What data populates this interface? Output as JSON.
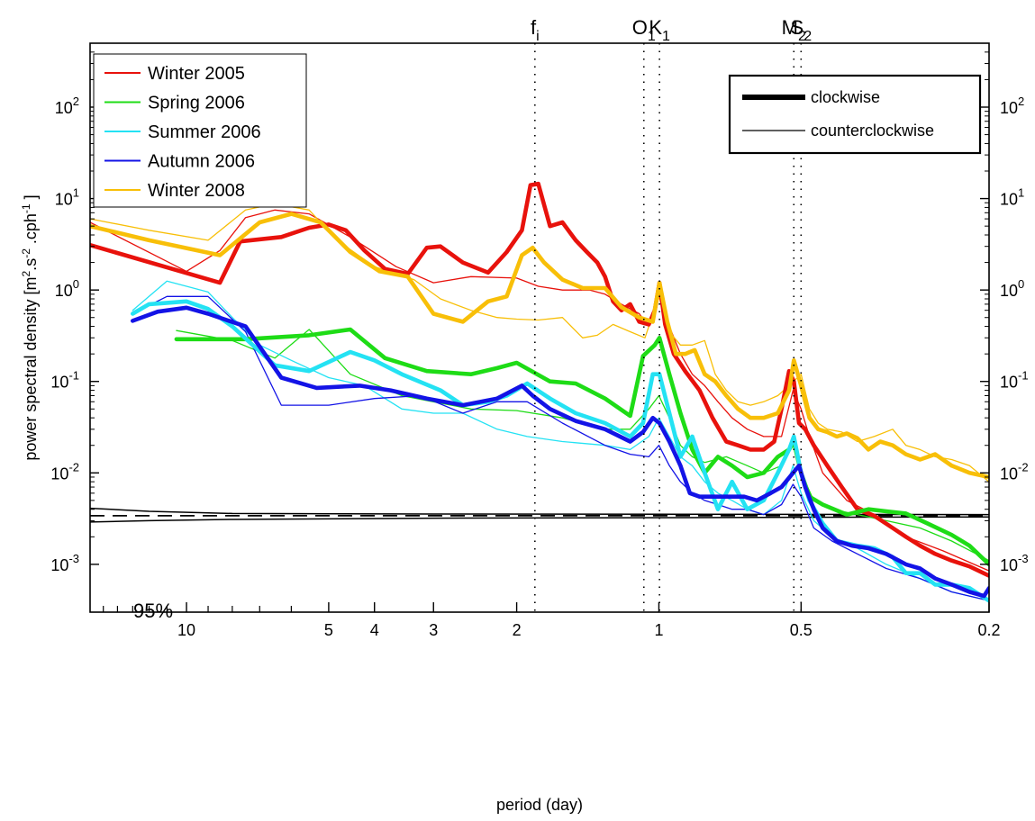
{
  "chart_data": {
    "type": "line",
    "title": "",
    "xlabel": "period (day)",
    "ylabel_parts": {
      "base": "power spectral density [m",
      "exp1": "2",
      "mid1": ".s",
      "exp2": "-2",
      "mid2": " .cph",
      "exp3": "-1",
      "end": " ]"
    },
    "x_scale": "reciprocal",
    "x_range_day": [
      16,
      0.2
    ],
    "x_ticks": [
      {
        "v": 10,
        "label": "10"
      },
      {
        "v": 5,
        "label": "5"
      },
      {
        "v": 4,
        "label": "4"
      },
      {
        "v": 3,
        "label": "3"
      },
      {
        "v": 2,
        "label": "2"
      },
      {
        "v": 1,
        "label": "1"
      },
      {
        "v": 0.5,
        "label": "0.5"
      },
      {
        "v": 0.2,
        "label": "0.2"
      }
    ],
    "x_minor_ticks": [
      15,
      14,
      13,
      12,
      11,
      9,
      8,
      7,
      6
    ],
    "y_scale": "log",
    "y_range": [
      0.0003,
      500
    ],
    "y_ticks": [
      {
        "v": 0.001,
        "base": "10",
        "exp": "-3"
      },
      {
        "v": 0.01,
        "base": "10",
        "exp": "-2"
      },
      {
        "v": 0.1,
        "base": "10",
        "exp": "-1"
      },
      {
        "v": 1,
        "base": "10",
        "exp": "0"
      },
      {
        "v": 10,
        "base": "10",
        "exp": "1"
      },
      {
        "v": 100,
        "base": "10",
        "exp": "2"
      }
    ],
    "tidal_lines": [
      {
        "name": "fi",
        "main": "f",
        "sub": "i",
        "period": 1.83
      },
      {
        "name": "O1",
        "main": "O",
        "sub": "1",
        "period": 1.076
      },
      {
        "name": "K1",
        "main": "K",
        "sub": "1",
        "period": 0.997
      },
      {
        "name": "M2",
        "main": "M",
        "sub": "2",
        "period": 0.518
      },
      {
        "name": "S2",
        "main": "S",
        "sub": "2",
        "period": 0.5
      }
    ],
    "legend": {
      "placement": "top-left",
      "entries": [
        {
          "name": "Winter 2005",
          "color": "#e8120c"
        },
        {
          "name": "Spring 2006",
          "color": "#1edc16"
        },
        {
          "name": "Summer 2006",
          "color": "#24e2f3"
        },
        {
          "name": "Autumn 2006",
          "color": "#1313e6"
        },
        {
          "name": "Winter 2008",
          "color": "#f8bf08"
        }
      ]
    },
    "style_legend": {
      "placement": "top-right",
      "entries": [
        {
          "name": "clockwise",
          "weight": "thick"
        },
        {
          "name": "counterclockwise",
          "weight": "thin"
        }
      ]
    },
    "confidence": {
      "label": "95%",
      "upper": [
        [
          16,
          0.0041
        ],
        [
          12,
          0.0038
        ],
        [
          8,
          0.0036
        ],
        [
          3,
          0.00355
        ],
        [
          0.2,
          0.0035
        ]
      ],
      "mean": [
        [
          16,
          0.0034
        ],
        [
          0.2,
          0.0034
        ]
      ],
      "lower": [
        [
          16,
          0.0029
        ],
        [
          12,
          0.003
        ],
        [
          8,
          0.0031
        ],
        [
          3,
          0.0032
        ],
        [
          0.2,
          0.0033
        ]
      ]
    },
    "series": [
      {
        "name": "Winter 2005",
        "rotation": "clockwise",
        "color": "#e8120c",
        "x": [
          16,
          8.5,
          7.7,
          6.3,
          5.5,
          5,
          4.6,
          4.2,
          3.8,
          3.4,
          3.1,
          2.9,
          2.6,
          2.3,
          2.1,
          1.95,
          1.87,
          1.8,
          1.7,
          1.6,
          1.5,
          1.42,
          1.35,
          1.3,
          1.25,
          1.2,
          1.15,
          1.1,
          1.05,
          1.02,
          0.997,
          0.97,
          0.93,
          0.88,
          0.82,
          0.77,
          0.72,
          0.68,
          0.64,
          0.6,
          0.57,
          0.55,
          0.53,
          0.518,
          0.505,
          0.49,
          0.47,
          0.44,
          0.41,
          0.38,
          0.35,
          0.32,
          0.3,
          0.28,
          0.26,
          0.24,
          0.22,
          0.2
        ],
        "y": [
          3.1,
          1.2,
          3.4,
          3.8,
          4.8,
          5.2,
          4.5,
          2.7,
          1.7,
          1.5,
          2.9,
          3.0,
          2.0,
          1.55,
          2.6,
          4.5,
          14.0,
          14.5,
          5.0,
          5.5,
          3.5,
          2.6,
          2.0,
          1.4,
          0.75,
          0.6,
          0.7,
          0.45,
          0.42,
          0.6,
          1.2,
          0.42,
          0.2,
          0.13,
          0.08,
          0.04,
          0.022,
          0.02,
          0.018,
          0.018,
          0.022,
          0.05,
          0.13,
          0.1,
          0.035,
          0.03,
          0.02,
          0.012,
          0.007,
          0.004,
          0.0034,
          0.0025,
          0.002,
          0.0016,
          0.0013,
          0.0011,
          0.00095,
          0.00075
        ]
      },
      {
        "name": "Winter 2005",
        "rotation": "counterclockwise",
        "color": "#e8120c",
        "x": [
          16,
          10,
          8.5,
          7.5,
          6.5,
          5.5,
          4.5,
          3.6,
          3.0,
          2.5,
          2.0,
          1.8,
          1.6,
          1.4,
          1.3,
          1.2,
          1.1,
          1.05,
          1.0,
          0.95,
          0.9,
          0.85,
          0.8,
          0.75,
          0.7,
          0.65,
          0.6,
          0.55,
          0.52,
          0.5,
          0.48,
          0.45,
          0.4,
          0.35,
          0.3,
          0.25,
          0.2
        ],
        "y": [
          5.5,
          1.6,
          2.7,
          6.2,
          7.5,
          6.8,
          3.8,
          1.8,
          1.2,
          1.4,
          1.35,
          1.1,
          1.0,
          1.0,
          0.9,
          0.7,
          0.55,
          0.4,
          0.9,
          0.4,
          0.2,
          0.12,
          0.09,
          0.06,
          0.04,
          0.03,
          0.025,
          0.025,
          0.08,
          0.05,
          0.025,
          0.01,
          0.005,
          0.0035,
          0.002,
          0.0014,
          0.00085
        ]
      },
      {
        "name": "Spring 2006",
        "rotation": "clockwise",
        "color": "#1edc16",
        "x": [
          10.5,
          7.5,
          5.5,
          4.5,
          3.8,
          3.1,
          2.5,
          2.2,
          2.0,
          1.7,
          1.5,
          1.3,
          1.15,
          1.08,
          1.02,
          0.997,
          0.95,
          0.9,
          0.85,
          0.8,
          0.75,
          0.7,
          0.65,
          0.6,
          0.56,
          0.53,
          0.518,
          0.5,
          0.48,
          0.45,
          0.4,
          0.36,
          0.33,
          0.3,
          0.27,
          0.24,
          0.22,
          0.2
        ],
        "y": [
          0.29,
          0.29,
          0.32,
          0.37,
          0.18,
          0.13,
          0.12,
          0.14,
          0.16,
          0.1,
          0.095,
          0.065,
          0.042,
          0.19,
          0.25,
          0.3,
          0.12,
          0.045,
          0.018,
          0.01,
          0.015,
          0.012,
          0.009,
          0.01,
          0.015,
          0.018,
          0.022,
          0.01,
          0.0055,
          0.0045,
          0.0035,
          0.004,
          0.0038,
          0.0036,
          0.0028,
          0.0021,
          0.0016,
          0.001
        ]
      },
      {
        "name": "Spring 2006",
        "rotation": "counterclockwise",
        "color": "#1edc16",
        "x": [
          10.5,
          8,
          6.5,
          5.5,
          4.5,
          3.5,
          3.0,
          2.5,
          2.0,
          1.6,
          1.3,
          1.15,
          1.05,
          1.0,
          0.95,
          0.9,
          0.85,
          0.8,
          0.72,
          0.65,
          0.6,
          0.55,
          0.52,
          0.5,
          0.47,
          0.43,
          0.38,
          0.33,
          0.28,
          0.24,
          0.2
        ],
        "y": [
          0.36,
          0.28,
          0.18,
          0.37,
          0.12,
          0.07,
          0.06,
          0.05,
          0.048,
          0.04,
          0.03,
          0.03,
          0.05,
          0.07,
          0.04,
          0.02,
          0.015,
          0.013,
          0.015,
          0.012,
          0.01,
          0.012,
          0.02,
          0.01,
          0.005,
          0.004,
          0.0035,
          0.003,
          0.0025,
          0.0018,
          0.0011
        ]
      },
      {
        "name": "Summer 2006",
        "rotation": "clockwise",
        "color": "#24e2f3",
        "x": [
          13,
          12,
          10,
          9,
          8,
          6.5,
          5.5,
          4.5,
          4.0,
          3.5,
          2.9,
          2.6,
          2.3,
          2.1,
          1.9,
          1.7,
          1.5,
          1.3,
          1.15,
          1.08,
          1.03,
          0.997,
          0.95,
          0.9,
          0.85,
          0.8,
          0.75,
          0.7,
          0.65,
          0.6,
          0.56,
          0.53,
          0.518,
          0.5,
          0.48,
          0.45,
          0.42,
          0.38,
          0.35,
          0.32,
          0.3,
          0.28,
          0.26,
          0.24,
          0.22,
          0.2
        ],
        "y": [
          0.55,
          0.7,
          0.75,
          0.62,
          0.4,
          0.15,
          0.13,
          0.21,
          0.17,
          0.12,
          0.08,
          0.055,
          0.06,
          0.07,
          0.095,
          0.065,
          0.045,
          0.035,
          0.025,
          0.035,
          0.12,
          0.12,
          0.045,
          0.015,
          0.025,
          0.01,
          0.004,
          0.008,
          0.004,
          0.005,
          0.01,
          0.018,
          0.025,
          0.01,
          0.005,
          0.0028,
          0.0018,
          0.0016,
          0.0015,
          0.0012,
          0.0008,
          0.0008,
          0.0006,
          0.0006,
          0.00055,
          0.0004
        ]
      },
      {
        "name": "Summer 2006",
        "rotation": "counterclockwise",
        "color": "#24e2f3",
        "x": [
          13,
          11,
          9,
          8,
          7,
          6,
          5,
          4.2,
          3.5,
          3.0,
          2.6,
          2.2,
          1.9,
          1.6,
          1.3,
          1.15,
          1.05,
          1.0,
          0.95,
          0.9,
          0.85,
          0.8,
          0.75,
          0.7,
          0.65,
          0.6,
          0.55,
          0.52,
          0.5,
          0.47,
          0.43,
          0.38,
          0.33,
          0.28,
          0.24,
          0.2
        ],
        "y": [
          0.6,
          1.25,
          0.95,
          0.5,
          0.25,
          0.17,
          0.11,
          0.09,
          0.05,
          0.045,
          0.045,
          0.03,
          0.025,
          0.022,
          0.02,
          0.018,
          0.025,
          0.04,
          0.025,
          0.015,
          0.012,
          0.008,
          0.006,
          0.005,
          0.004,
          0.0035,
          0.005,
          0.012,
          0.006,
          0.003,
          0.002,
          0.0015,
          0.001,
          0.0007,
          0.0005,
          0.0004
        ]
      },
      {
        "name": "Autumn 2006",
        "rotation": "clockwise",
        "color": "#1313e6",
        "x": [
          13,
          11.5,
          10,
          9,
          7.5,
          6.3,
          5.3,
          4.3,
          3.7,
          3.1,
          2.6,
          2.2,
          1.95,
          1.85,
          1.7,
          1.5,
          1.3,
          1.15,
          1.08,
          1.03,
          0.997,
          0.95,
          0.9,
          0.86,
          0.82,
          0.78,
          0.74,
          0.7,
          0.66,
          0.62,
          0.58,
          0.55,
          0.52,
          0.505,
          0.49,
          0.47,
          0.45,
          0.42,
          0.39,
          0.36,
          0.33,
          0.3,
          0.28,
          0.26,
          0.24,
          0.22,
          0.205,
          0.2
        ],
        "y": [
          0.46,
          0.58,
          0.64,
          0.55,
          0.4,
          0.11,
          0.085,
          0.09,
          0.08,
          0.065,
          0.055,
          0.065,
          0.09,
          0.07,
          0.05,
          0.037,
          0.03,
          0.022,
          0.028,
          0.04,
          0.035,
          0.022,
          0.012,
          0.006,
          0.0055,
          0.0055,
          0.0055,
          0.0055,
          0.0055,
          0.005,
          0.006,
          0.007,
          0.01,
          0.012,
          0.007,
          0.004,
          0.0025,
          0.0018,
          0.0016,
          0.0015,
          0.0013,
          0.001,
          0.0009,
          0.0007,
          0.0006,
          0.0005,
          0.00045,
          0.00055
        ]
      },
      {
        "name": "Autumn 2006",
        "rotation": "counterclockwise",
        "color": "#1313e6",
        "x": [
          13,
          11,
          9,
          7.5,
          6.3,
          5.0,
          4.0,
          3.2,
          2.6,
          2.2,
          1.9,
          1.6,
          1.3,
          1.15,
          1.05,
          1.0,
          0.95,
          0.9,
          0.85,
          0.8,
          0.75,
          0.7,
          0.65,
          0.6,
          0.55,
          0.52,
          0.5,
          0.47,
          0.43,
          0.38,
          0.33,
          0.28,
          0.24,
          0.2
        ],
        "y": [
          0.55,
          0.85,
          0.85,
          0.35,
          0.055,
          0.055,
          0.065,
          0.07,
          0.045,
          0.06,
          0.06,
          0.035,
          0.02,
          0.016,
          0.015,
          0.02,
          0.012,
          0.008,
          0.006,
          0.005,
          0.0045,
          0.004,
          0.004,
          0.0035,
          0.0045,
          0.0075,
          0.0055,
          0.0025,
          0.0018,
          0.0013,
          0.0009,
          0.0007,
          0.0005,
          0.0004
        ]
      },
      {
        "name": "Winter 2008",
        "rotation": "clockwise",
        "color": "#f8bf08",
        "x": [
          16,
          12,
          8.5,
          7,
          6,
          5.2,
          4.5,
          3.9,
          3.4,
          3.0,
          2.6,
          2.3,
          2.1,
          1.95,
          1.85,
          1.75,
          1.6,
          1.45,
          1.3,
          1.2,
          1.1,
          1.03,
          0.997,
          0.96,
          0.92,
          0.88,
          0.84,
          0.8,
          0.76,
          0.72,
          0.68,
          0.64,
          0.6,
          0.56,
          0.53,
          0.518,
          0.5,
          0.48,
          0.46,
          0.44,
          0.42,
          0.4,
          0.38,
          0.36,
          0.34,
          0.32,
          0.3,
          0.28,
          0.26,
          0.24,
          0.22,
          0.2
        ],
        "y": [
          5.0,
          3.5,
          2.4,
          5.5,
          6.8,
          5.5,
          2.6,
          1.6,
          1.4,
          0.55,
          0.45,
          0.75,
          0.85,
          2.4,
          2.9,
          2.0,
          1.3,
          1.05,
          1.05,
          0.65,
          0.5,
          0.45,
          1.2,
          0.45,
          0.2,
          0.2,
          0.22,
          0.12,
          0.1,
          0.07,
          0.05,
          0.04,
          0.04,
          0.045,
          0.08,
          0.17,
          0.09,
          0.04,
          0.03,
          0.028,
          0.025,
          0.027,
          0.024,
          0.018,
          0.022,
          0.02,
          0.016,
          0.014,
          0.016,
          0.012,
          0.01,
          0.009
        ]
      },
      {
        "name": "Winter 2008",
        "rotation": "counterclockwise",
        "color": "#f8bf08",
        "x": [
          16,
          12,
          9,
          7.5,
          6.5,
          5.5,
          4.8,
          4.0,
          3.3,
          2.9,
          2.5,
          2.2,
          2.0,
          1.8,
          1.6,
          1.45,
          1.35,
          1.25,
          1.15,
          1.07,
          1.0,
          0.95,
          0.9,
          0.85,
          0.8,
          0.76,
          0.72,
          0.68,
          0.64,
          0.6,
          0.56,
          0.53,
          0.5,
          0.48,
          0.46,
          0.44,
          0.41,
          0.38,
          0.35,
          0.32,
          0.3,
          0.28,
          0.26,
          0.24,
          0.22,
          0.2
        ],
        "y": [
          6.0,
          4.5,
          3.5,
          7.5,
          8.8,
          7.5,
          3.5,
          1.8,
          1.3,
          0.8,
          0.6,
          0.5,
          0.48,
          0.47,
          0.5,
          0.3,
          0.32,
          0.42,
          0.35,
          0.3,
          0.85,
          0.35,
          0.25,
          0.25,
          0.28,
          0.12,
          0.08,
          0.06,
          0.055,
          0.06,
          0.07,
          0.09,
          0.12,
          0.05,
          0.035,
          0.03,
          0.028,
          0.022,
          0.025,
          0.03,
          0.02,
          0.018,
          0.015,
          0.014,
          0.012,
          0.008
        ]
      }
    ]
  }
}
